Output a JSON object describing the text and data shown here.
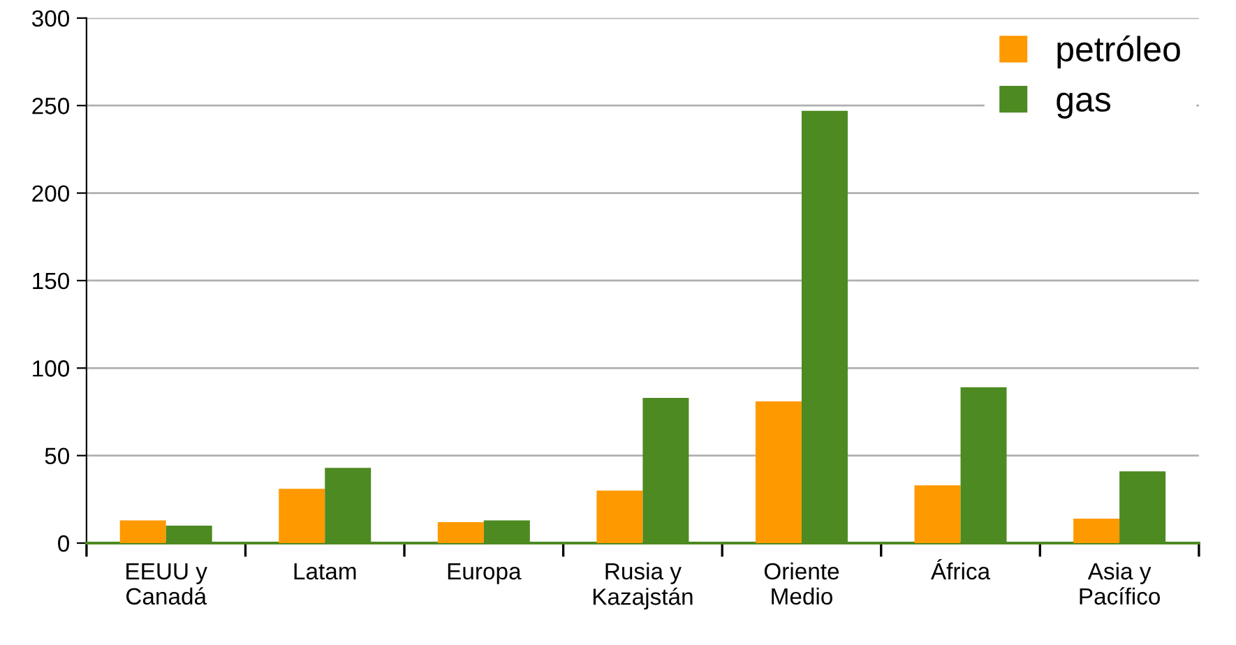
{
  "chart_data": {
    "type": "bar",
    "categories": [
      "EEUU y\nCanadá",
      "Latam",
      "Europa",
      "Rusia y\nKazajstán",
      "Oriente\nMedio",
      "África",
      "Asia y\nPacífico"
    ],
    "series": [
      {
        "name": "petróleo",
        "color": "#ff9900",
        "values": [
          13,
          31,
          12,
          30,
          81,
          33,
          14
        ]
      },
      {
        "name": "gas",
        "color": "#4d8a21",
        "values": [
          10,
          43,
          13,
          83,
          247,
          89,
          41
        ]
      }
    ],
    "ylim": [
      0,
      300
    ],
    "yticks": [
      0,
      50,
      100,
      150,
      200,
      250,
      300
    ],
    "grid": "y",
    "legend": "top right"
  }
}
